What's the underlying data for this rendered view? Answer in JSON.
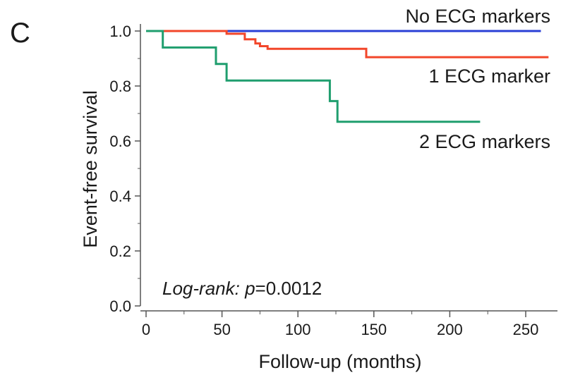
{
  "panel_letter": "C",
  "chart_data": {
    "type": "line",
    "step": true,
    "xlabel": "Follow-up (months)",
    "ylabel": "Event-free survival",
    "xlim": [
      0,
      260
    ],
    "ylim": [
      0,
      1.0
    ],
    "x_ticks": [
      0,
      50,
      100,
      150,
      200,
      250
    ],
    "y_ticks": [
      0.0,
      0.2,
      0.4,
      0.6,
      0.8,
      1.0
    ],
    "x_tick_labels": [
      "0",
      "50",
      "100",
      "150",
      "200",
      "250"
    ],
    "y_tick_labels": [
      "0.0",
      "0.2",
      "0.4",
      "0.6",
      "0.8",
      "1.0"
    ],
    "annotation": {
      "prefix": "Log-rank: ",
      "p_symbol": "p",
      "value": "=0.0012"
    },
    "series": [
      {
        "name": "No ECG markers",
        "color": "#2a3fd6",
        "points": [
          [
            0,
            1.0
          ],
          [
            260,
            1.0
          ]
        ]
      },
      {
        "name": "1 ECG marker",
        "color": "#f2462a",
        "points": [
          [
            0,
            1.0
          ],
          [
            53,
            1.0
          ],
          [
            53,
            0.99
          ],
          [
            65,
            0.99
          ],
          [
            65,
            0.97
          ],
          [
            72,
            0.97
          ],
          [
            72,
            0.955
          ],
          [
            75,
            0.955
          ],
          [
            75,
            0.945
          ],
          [
            80,
            0.945
          ],
          [
            80,
            0.935
          ],
          [
            145,
            0.935
          ],
          [
            145,
            0.905
          ],
          [
            265,
            0.905
          ]
        ]
      },
      {
        "name": "2 ECG markers",
        "color": "#1f9e6e",
        "points": [
          [
            0,
            1.0
          ],
          [
            11,
            1.0
          ],
          [
            11,
            0.94
          ],
          [
            46,
            0.94
          ],
          [
            46,
            0.88
          ],
          [
            53,
            0.88
          ],
          [
            53,
            0.82
          ],
          [
            121,
            0.82
          ],
          [
            121,
            0.745
          ],
          [
            126,
            0.745
          ],
          [
            126,
            0.67
          ],
          [
            220,
            0.67
          ]
        ]
      }
    ]
  }
}
